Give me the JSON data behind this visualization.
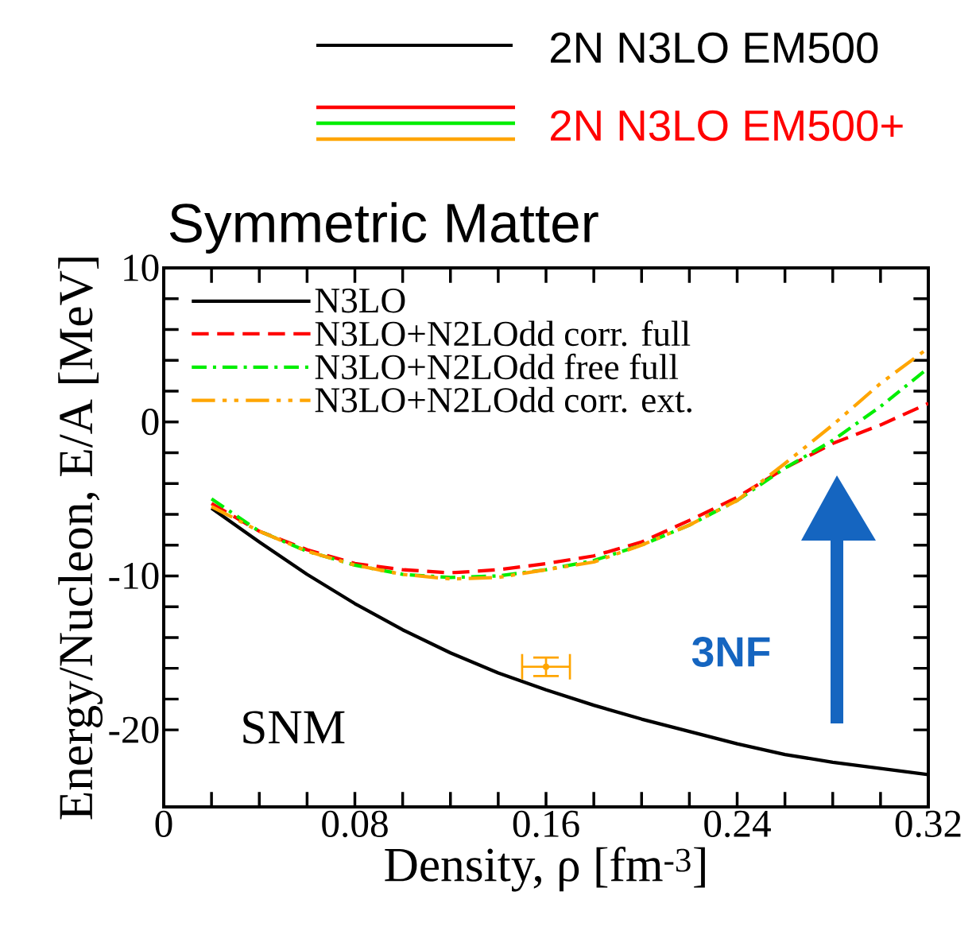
{
  "chart_data": {
    "type": "line",
    "title": "Symmetric Matter",
    "xlabel": "Density, ρ [fm$^{-3}$]",
    "ylabel": "Energy/Nucleon, E/A [MeV]",
    "x": [
      0.02,
      0.04,
      0.06,
      0.08,
      0.1,
      0.12,
      0.14,
      0.16,
      0.18,
      0.2,
      0.22,
      0.24,
      0.26,
      0.28,
      0.3,
      0.32
    ],
    "series": [
      {
        "name": "N3LO",
        "color": "#000000",
        "line_style": "solid",
        "values": [
          -5.6,
          -7.8,
          -9.9,
          -11.8,
          -13.5,
          -15.0,
          -16.3,
          -17.4,
          -18.4,
          -19.3,
          -20.1,
          -20.9,
          -21.6,
          -22.1,
          -22.5,
          -22.9
        ]
      },
      {
        "name": "N3LO+N2LOdd corr. full",
        "color": "#ff0000",
        "line_style": "dashed",
        "values": [
          -5.3,
          -7.1,
          -8.3,
          -9.2,
          -9.6,
          -9.8,
          -9.6,
          -9.2,
          -8.7,
          -7.8,
          -6.4,
          -4.9,
          -3.0,
          -1.4,
          -0.2,
          1.2
        ]
      },
      {
        "name": "N3LO+N2LOdd free full",
        "color": "#00ee00",
        "line_style": "dashdot",
        "values": [
          -5.0,
          -7.1,
          -8.4,
          -9.3,
          -9.9,
          -10.1,
          -10.0,
          -9.6,
          -9.0,
          -8.0,
          -6.7,
          -5.1,
          -3.0,
          -1.2,
          1.0,
          3.5
        ]
      },
      {
        "name": "N3LO+N2LOdd corr. ext.",
        "color": "#ffa500",
        "line_style": "dashdotdot",
        "values": [
          -5.5,
          -7.1,
          -8.4,
          -9.3,
          -9.9,
          -10.2,
          -10.1,
          -9.6,
          -9.1,
          -8.0,
          -6.7,
          -5.1,
          -2.7,
          -0.2,
          2.5,
          4.8
        ]
      },
      {
        "type": "scatter",
        "color": "#ffa500",
        "x": [
          0.16
        ],
        "values": [
          -15.9
        ],
        "errors": [
          0.6
        ],
        "xerrors": [
          0.01
        ]
      }
    ],
    "xlim": [
      0,
      0.32
    ],
    "xticks": [
      0,
      0.08,
      0.16,
      0.24,
      0.32
    ],
    "ylim": [
      -25,
      10
    ],
    "yticks": [
      -20,
      -10,
      0,
      10
    ],
    "legend": "top left",
    "annotations": [
      "2N N3LO EM500",
      "2N N3LO EM500+",
      "SNM",
      "3NF"
    ]
  }
}
